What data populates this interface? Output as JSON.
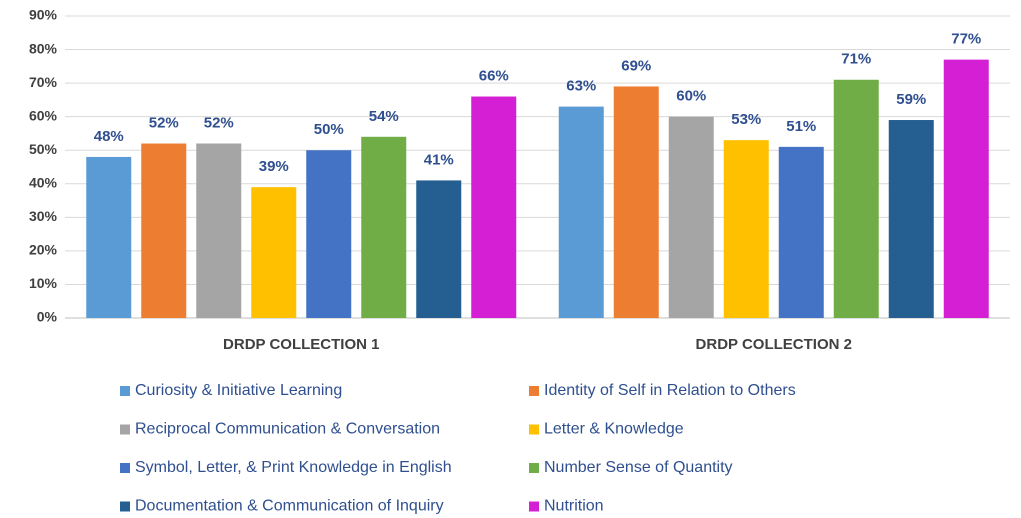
{
  "chart_data": {
    "type": "bar",
    "categories": [
      "DRDP COLLECTION 1",
      "DRDP COLLECTION 2"
    ],
    "series": [
      {
        "name": "Curiosity & Initiative Learning",
        "color": "#5b9bd5",
        "values": [
          48,
          63
        ],
        "value_labels": [
          "48%",
          "63%"
        ]
      },
      {
        "name": "Identity of Self in Relation to Others",
        "color": "#ed7d31",
        "values": [
          52,
          69
        ],
        "value_labels": [
          "52%",
          "69%"
        ]
      },
      {
        "name": "Reciprocal Communication & Conversation",
        "color": "#a5a5a5",
        "values": [
          52,
          60
        ],
        "value_labels": [
          "52%",
          "60%"
        ]
      },
      {
        "name": "Letter & Knowledge",
        "color": "#ffc000",
        "values": [
          39,
          53
        ],
        "value_labels": [
          "39%",
          "53%"
        ]
      },
      {
        "name": "Symbol, Letter, & Print Knowledge in English",
        "color": "#4472c4",
        "values": [
          50,
          51
        ],
        "value_labels": [
          "50%",
          "51%"
        ]
      },
      {
        "name": "Number Sense of Quantity",
        "color": "#70ad47",
        "values": [
          54,
          71
        ],
        "value_labels": [
          "54%",
          "71%"
        ]
      },
      {
        "name": "Documentation & Communication of Inquiry",
        "color": "#255e91",
        "values": [
          41,
          59
        ],
        "value_labels": [
          "41%",
          "59%"
        ]
      },
      {
        "name": "Nutrition",
        "color": "#d41fd4",
        "values": [
          66,
          77
        ],
        "value_labels": [
          "66%",
          "77%"
        ]
      }
    ],
    "ylim": [
      0,
      90
    ],
    "yticks": [
      {
        "value": 0,
        "label": "0%"
      },
      {
        "value": 10,
        "label": "10%"
      },
      {
        "value": 20,
        "label": "20%"
      },
      {
        "value": 30,
        "label": "30%"
      },
      {
        "value": 40,
        "label": "40%"
      },
      {
        "value": 50,
        "label": "50%"
      },
      {
        "value": 60,
        "label": "60%"
      },
      {
        "value": 70,
        "label": "70%"
      },
      {
        "value": 80,
        "label": "80%"
      },
      {
        "value": 90,
        "label": "90%"
      }
    ],
    "grid": true
  }
}
